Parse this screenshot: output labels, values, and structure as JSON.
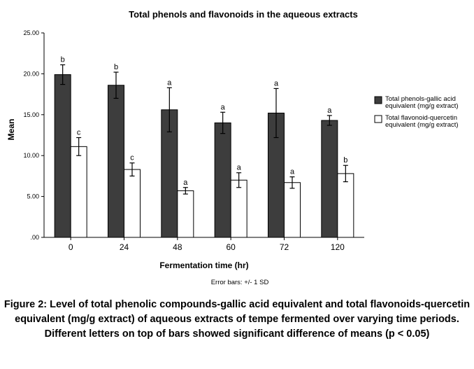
{
  "chart_data": {
    "type": "bar",
    "title": "Total phenols and flavonoids in the aqueous extracts",
    "xlabel": "Fermentation time (hr)",
    "ylabel": "Mean",
    "categories": [
      "0",
      "24",
      "48",
      "60",
      "72",
      "120"
    ],
    "ylim": [
      0,
      25
    ],
    "yticks": [
      ".00",
      "5.00",
      "10.00",
      "15.00",
      "20.00",
      "25.00"
    ],
    "series": [
      {
        "name": "Total phenols-gallic acid equivalent (mg/g extract)",
        "color": "#3d3d3d",
        "values": [
          19.9,
          18.6,
          15.6,
          14.0,
          15.2,
          14.3
        ],
        "error": [
          1.2,
          1.6,
          2.7,
          1.3,
          3.0,
          0.6
        ],
        "letters": [
          "b",
          "b",
          "a",
          "a",
          "a",
          "a"
        ]
      },
      {
        "name": "Total flavonoid-quercetin equivalent (mg/g extract)",
        "color": "#ffffff",
        "values": [
          11.1,
          8.3,
          5.7,
          7.0,
          6.7,
          7.8
        ],
        "error": [
          1.1,
          0.8,
          0.4,
          0.9,
          0.7,
          1.0
        ],
        "letters": [
          "c",
          "c",
          "a",
          "a",
          "a",
          "b"
        ]
      }
    ],
    "legend": [
      [
        "Total phenols-gallic acid",
        "equivalent (mg/g extract)"
      ],
      [
        "Total flavonoid-quercetin",
        "equivalent (mg/g extract)"
      ]
    ],
    "legend_position": "right",
    "grid": false,
    "note": "Error bars: +/- 1 SD"
  },
  "caption": "Figure 2: Level of total phenolic compounds-gallic acid equivalent and total flavonoids-quercetin equivalent (mg/g extract) of aqueous extracts of tempe fermented over varying time periods. Different letters on top of bars showed significant difference of means (p < 0.05)"
}
